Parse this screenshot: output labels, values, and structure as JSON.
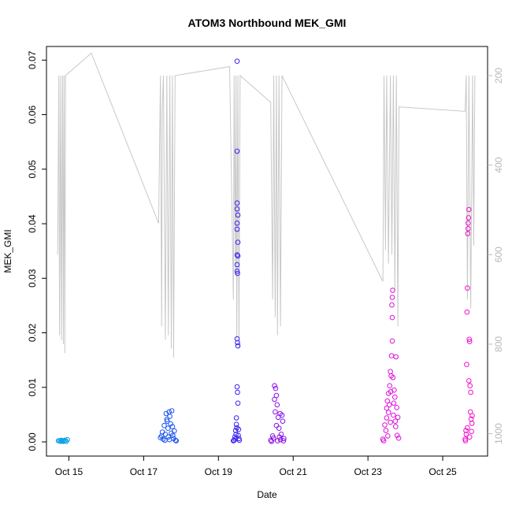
{
  "chart_data": {
    "type": "scatter",
    "title": "ATOM3 Northbound MEK_GMI",
    "xlabel": "Date",
    "ylabel": "MEK_GMI",
    "x_ticks": [
      "Oct 15",
      "Oct 17",
      "Oct 19",
      "Oct 21",
      "Oct 23",
      "Oct 25"
    ],
    "x_tick_days": [
      15,
      17,
      19,
      21,
      23,
      25
    ],
    "xlim": [
      14.4,
      26.2
    ],
    "y_ticks": [
      "0.00",
      "0.01",
      "0.02",
      "0.03",
      "0.04",
      "0.05",
      "0.06",
      "0.07"
    ],
    "y_tick_values": [
      0,
      0.01,
      0.02,
      0.03,
      0.04,
      0.05,
      0.06,
      0.07
    ],
    "ylim": [
      -0.0026,
      0.0725
    ],
    "y2_ticks": [
      "200",
      "400",
      "600",
      "800",
      "1000"
    ],
    "y2_tick_values": [
      200,
      400,
      600,
      800,
      1000
    ],
    "y2lim": [
      1050,
      135
    ],
    "y2_reversed": true,
    "colors": {
      "axis": "#000000",
      "secondary_axis": "#b8b8b8",
      "pressure_line": "#c8c8c8",
      "point_colors": [
        "#0aa0e6",
        "#1a55ee",
        "#3a22f0",
        "#8a10e6",
        "#dd10dd",
        "#f010cc"
      ]
    },
    "series": [
      {
        "color": "#0aa0e6",
        "points": [
          [
            14.75,
            0.0002
          ],
          [
            14.78,
            0.0001
          ],
          [
            14.8,
            0.0003
          ],
          [
            14.82,
            0.0002
          ],
          [
            14.85,
            0.0001
          ],
          [
            14.87,
            0.0002
          ],
          [
            14.9,
            0.0003
          ],
          [
            14.93,
            0.0001
          ],
          [
            14.96,
            0.0004
          ],
          [
            14.72,
            0.0002
          ]
        ]
      },
      {
        "color": "#1a55ee",
        "points": [
          [
            17.45,
            0.0008
          ],
          [
            17.5,
            0.0018
          ],
          [
            17.52,
            0.0005
          ],
          [
            17.55,
            0.003
          ],
          [
            17.6,
            0.0052
          ],
          [
            17.62,
            0.0041
          ],
          [
            17.65,
            0.0025
          ],
          [
            17.68,
            0.0055
          ],
          [
            17.7,
            0.0047
          ],
          [
            17.72,
            0.0033
          ],
          [
            17.75,
            0.0057
          ],
          [
            17.78,
            0.0012
          ],
          [
            17.8,
            0.0006
          ],
          [
            17.82,
            0.002
          ],
          [
            17.85,
            0.0003
          ],
          [
            17.48,
            0.0011
          ],
          [
            17.58,
            0.0014
          ],
          [
            17.66,
            0.0009
          ],
          [
            17.74,
            0.0016
          ],
          [
            17.87,
            0.0002
          ],
          [
            17.57,
            0.0003
          ],
          [
            17.69,
            0.0004
          ],
          [
            17.77,
            0.0028
          ],
          [
            17.63,
            0.0038
          ]
        ]
      },
      {
        "color": "#3a22f0",
        "points": [
          [
            19.42,
            0.0003
          ],
          [
            19.44,
            0.0009
          ],
          [
            19.46,
            0.0021
          ],
          [
            19.48,
            0.0032
          ],
          [
            19.5,
            0.0698
          ],
          [
            19.5,
            0.0533
          ],
          [
            19.5,
            0.0438
          ],
          [
            19.5,
            0.0427
          ],
          [
            19.52,
            0.0416
          ],
          [
            19.5,
            0.0401
          ],
          [
            19.5,
            0.039
          ],
          [
            19.52,
            0.0366
          ],
          [
            19.5,
            0.0343
          ],
          [
            19.52,
            0.0341
          ],
          [
            19.5,
            0.0325
          ],
          [
            19.5,
            0.0313
          ],
          [
            19.51,
            0.0309
          ],
          [
            19.5,
            0.0189
          ],
          [
            19.51,
            0.0182
          ],
          [
            19.52,
            0.0176
          ],
          [
            19.5,
            0.0101
          ],
          [
            19.51,
            0.0091
          ],
          [
            19.52,
            0.0071
          ],
          [
            19.48,
            0.0044
          ],
          [
            19.49,
            0.0026
          ],
          [
            19.53,
            0.0012
          ],
          [
            19.55,
            0.0006
          ],
          [
            19.45,
            0.0005
          ],
          [
            19.4,
            0.0002
          ],
          [
            19.56,
            0.0003
          ],
          [
            19.47,
            0.0014
          ],
          [
            19.54,
            0.0023
          ]
        ]
      },
      {
        "color": "#8a10e6",
        "points": [
          [
            20.4,
            0.0003
          ],
          [
            20.45,
            0.0011
          ],
          [
            20.5,
            0.0103
          ],
          [
            20.53,
            0.0098
          ],
          [
            20.55,
            0.0085
          ],
          [
            20.5,
            0.0078
          ],
          [
            20.57,
            0.0068
          ],
          [
            20.52,
            0.0055
          ],
          [
            20.6,
            0.0045
          ],
          [
            20.65,
            0.0052
          ],
          [
            20.7,
            0.0049
          ],
          [
            20.72,
            0.0038
          ],
          [
            20.62,
            0.0025
          ],
          [
            20.68,
            0.0014
          ],
          [
            20.75,
            0.0006
          ],
          [
            20.58,
            0.0002
          ],
          [
            20.47,
            0.0007
          ],
          [
            20.66,
            0.0004
          ],
          [
            20.42,
            0.0001
          ],
          [
            20.74,
            0.0002
          ],
          [
            20.55,
            0.003
          ],
          [
            20.63,
            0.0009
          ]
        ]
      },
      {
        "color": "#dd10dd",
        "points": [
          [
            23.4,
            0.0005
          ],
          [
            23.45,
            0.0031
          ],
          [
            23.5,
            0.0062
          ],
          [
            23.52,
            0.0075
          ],
          [
            23.55,
            0.0089
          ],
          [
            23.58,
            0.0103
          ],
          [
            23.6,
            0.0129
          ],
          [
            23.62,
            0.0121
          ],
          [
            23.63,
            0.0158
          ],
          [
            23.65,
            0.0185
          ],
          [
            23.65,
            0.0228
          ],
          [
            23.65,
            0.0265
          ],
          [
            23.66,
            0.0278
          ],
          [
            23.64,
            0.0251
          ],
          [
            23.67,
            0.0118
          ],
          [
            23.7,
            0.0095
          ],
          [
            23.72,
            0.0082
          ],
          [
            23.75,
            0.0156
          ],
          [
            23.77,
            0.0063
          ],
          [
            23.8,
            0.0045
          ],
          [
            23.55,
            0.0054
          ],
          [
            23.48,
            0.0021
          ],
          [
            23.53,
            0.0011
          ],
          [
            23.6,
            0.0036
          ],
          [
            23.68,
            0.0049
          ],
          [
            23.74,
            0.0028
          ],
          [
            23.78,
            0.0012
          ],
          [
            23.82,
            0.0007
          ],
          [
            23.42,
            0.0002
          ],
          [
            23.57,
            0.0068
          ],
          [
            23.61,
            0.0092
          ],
          [
            23.69,
            0.0071
          ],
          [
            23.5,
            0.0044
          ],
          [
            23.73,
            0.0038
          ]
        ]
      },
      {
        "color": "#f010cc",
        "points": [
          [
            25.6,
            0.0005
          ],
          [
            25.62,
            0.0021
          ],
          [
            25.64,
            0.0142
          ],
          [
            25.65,
            0.0238
          ],
          [
            25.66,
            0.0282
          ],
          [
            25.67,
            0.0382
          ],
          [
            25.68,
            0.0401
          ],
          [
            25.69,
            0.0411
          ],
          [
            25.7,
            0.0426
          ],
          [
            25.68,
            0.0391
          ],
          [
            25.71,
            0.0188
          ],
          [
            25.72,
            0.0184
          ],
          [
            25.7,
            0.0112
          ],
          [
            25.73,
            0.0103
          ],
          [
            25.75,
            0.0091
          ],
          [
            25.74,
            0.0055
          ],
          [
            25.76,
            0.0042
          ],
          [
            25.78,
            0.0034
          ],
          [
            25.66,
            0.0026
          ],
          [
            25.63,
            0.0014
          ],
          [
            25.72,
            0.0009
          ],
          [
            25.77,
            0.0019
          ],
          [
            25.61,
            0.0002
          ],
          [
            25.79,
            0.0048
          ]
        ]
      }
    ],
    "pressure_line": {
      "color": "#c8c8c8",
      "points": [
        [
          14.7,
          600
        ],
        [
          14.73,
          200
        ],
        [
          14.75,
          780
        ],
        [
          14.78,
          200
        ],
        [
          14.8,
          790
        ],
        [
          14.83,
          200
        ],
        [
          14.85,
          800
        ],
        [
          14.87,
          200
        ],
        [
          14.89,
          820
        ],
        [
          14.91,
          200
        ],
        [
          15.6,
          150
        ],
        [
          17.4,
          530
        ],
        [
          17.45,
          200
        ],
        [
          17.48,
          760
        ],
        [
          17.5,
          270
        ],
        [
          17.53,
          200
        ],
        [
          17.58,
          790
        ],
        [
          17.62,
          200
        ],
        [
          17.66,
          780
        ],
        [
          17.7,
          200
        ],
        [
          17.74,
          810
        ],
        [
          17.77,
          200
        ],
        [
          17.8,
          830
        ],
        [
          17.84,
          200
        ],
        [
          19.3,
          180
        ],
        [
          19.4,
          700
        ],
        [
          19.42,
          200
        ],
        [
          19.45,
          640
        ],
        [
          19.47,
          200
        ],
        [
          19.49,
          790
        ],
        [
          19.52,
          200
        ],
        [
          19.55,
          810
        ],
        [
          19.58,
          200
        ],
        [
          20.4,
          260
        ],
        [
          20.45,
          700
        ],
        [
          20.48,
          200
        ],
        [
          20.52,
          740
        ],
        [
          20.55,
          200
        ],
        [
          20.58,
          780
        ],
        [
          20.62,
          200
        ],
        [
          20.66,
          760
        ],
        [
          20.7,
          200
        ],
        [
          23.4,
          660
        ],
        [
          23.43,
          200
        ],
        [
          23.47,
          590
        ],
        [
          23.5,
          200
        ],
        [
          23.55,
          620
        ],
        [
          23.6,
          200
        ],
        [
          23.64,
          600
        ],
        [
          23.68,
          200
        ],
        [
          23.72,
          680
        ],
        [
          23.76,
          200
        ],
        [
          23.8,
          760
        ],
        [
          23.83,
          270
        ],
        [
          25.6,
          280
        ],
        [
          25.63,
          200
        ],
        [
          25.66,
          700
        ],
        [
          25.7,
          200
        ],
        [
          25.75,
          720
        ],
        [
          25.8,
          200
        ],
        [
          25.83,
          580
        ],
        [
          25.86,
          200
        ]
      ]
    }
  }
}
